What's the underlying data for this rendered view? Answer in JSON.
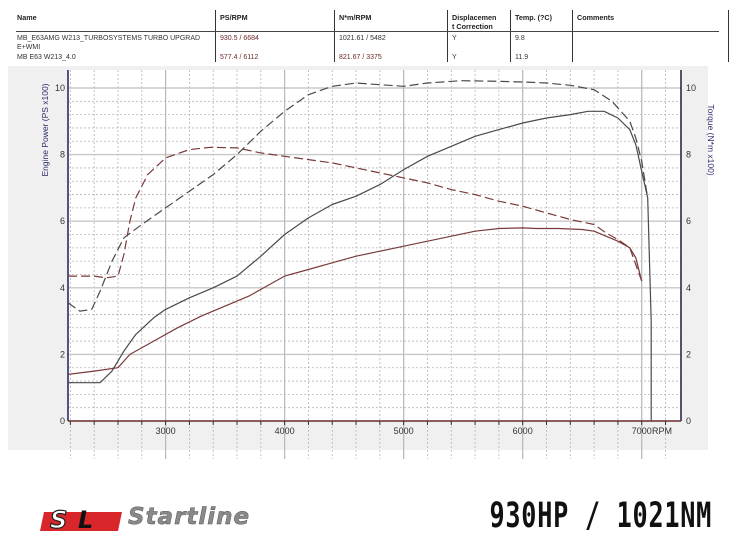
{
  "table": {
    "headers": {
      "name": "Name",
      "ps_rpm": "PS/RPM",
      "nm_rpm": "N*m/RPM",
      "displacement_line1": "Displacemen",
      "displacement_line2": "t Correction",
      "temp": "Temp. (?C)",
      "comments": "Comments"
    },
    "rows": [
      {
        "name_line1": "MB_E63AMG W213_TURBOSYSTEMS TURBO UPGRAD",
        "name_line2": "E+WMI",
        "ps_rpm": "930.5 / 6684",
        "nm_rpm": "1021.61 / 5482",
        "displacement": "Y",
        "temp": "9.8",
        "comments": ""
      },
      {
        "name_line1": "MB E63 W213_4.0",
        "name_line2": "",
        "ps_rpm": "577.4 / 6112",
        "nm_rpm": "821.67 / 3375",
        "displacement": "Y",
        "temp": "11.9",
        "comments": ""
      }
    ]
  },
  "footer": {
    "logo_mark": "SL",
    "logo_text": "Startline",
    "headline": "930HP / 1021NM"
  },
  "chart_data": {
    "type": "line",
    "title": "",
    "xlabel": "RPM",
    "ylabel": "Engine Power (PS x100)",
    "y2label": "Torque (N*m x100)",
    "xlim": [
      2180,
      7330
    ],
    "ylim": [
      0,
      10.5
    ],
    "y2lim": [
      0,
      10.5
    ],
    "x_ticks": [
      3000,
      4000,
      5000,
      6000,
      7000
    ],
    "y_ticks": [
      0,
      2,
      4,
      6,
      8,
      10
    ],
    "y2_ticks": [
      0,
      2,
      4,
      6,
      8,
      10
    ],
    "grid": true,
    "legend": "none (curves identified by header table)",
    "series": [
      {
        "name": "MB_E63AMG W213_TURBOSYSTEMS TURBO UPGRADE+WMI - Power (PS x100)",
        "color": "#4a4a4a",
        "style": "solid",
        "points": [
          [
            2180,
            1.15
          ],
          [
            2450,
            1.15
          ],
          [
            2550,
            1.5
          ],
          [
            2650,
            2.1
          ],
          [
            2750,
            2.6
          ],
          [
            2900,
            3.1
          ],
          [
            3000,
            3.35
          ],
          [
            3200,
            3.7
          ],
          [
            3400,
            4.0
          ],
          [
            3600,
            4.35
          ],
          [
            3800,
            4.95
          ],
          [
            4000,
            5.6
          ],
          [
            4200,
            6.1
          ],
          [
            4400,
            6.5
          ],
          [
            4600,
            6.75
          ],
          [
            4800,
            7.1
          ],
          [
            5000,
            7.55
          ],
          [
            5200,
            7.95
          ],
          [
            5400,
            8.25
          ],
          [
            5600,
            8.55
          ],
          [
            5800,
            8.75
          ],
          [
            6000,
            8.95
          ],
          [
            6200,
            9.1
          ],
          [
            6400,
            9.2
          ],
          [
            6550,
            9.3
          ],
          [
            6684,
            9.3
          ],
          [
            6800,
            9.1
          ],
          [
            6900,
            8.75
          ],
          [
            6950,
            8.3
          ],
          [
            7000,
            7.5
          ],
          [
            7050,
            6.7
          ],
          [
            7080,
            3.0
          ],
          [
            7080,
            0
          ]
        ]
      },
      {
        "name": "MB_E63AMG W213_TURBOSYSTEMS TURBO UPGRADE+WMI - Torque (N*m x100)",
        "color": "#4a4a4a",
        "style": "dashed",
        "points": [
          [
            2180,
            3.55
          ],
          [
            2280,
            3.3
          ],
          [
            2380,
            3.35
          ],
          [
            2450,
            3.9
          ],
          [
            2550,
            4.8
          ],
          [
            2650,
            5.5
          ],
          [
            2800,
            5.9
          ],
          [
            3000,
            6.4
          ],
          [
            3200,
            6.9
          ],
          [
            3400,
            7.4
          ],
          [
            3600,
            8.0
          ],
          [
            3800,
            8.7
          ],
          [
            4000,
            9.3
          ],
          [
            4200,
            9.8
          ],
          [
            4400,
            10.05
          ],
          [
            4600,
            10.15
          ],
          [
            4800,
            10.1
          ],
          [
            5000,
            10.05
          ],
          [
            5200,
            10.15
          ],
          [
            5482,
            10.22
          ],
          [
            5800,
            10.2
          ],
          [
            6000,
            10.18
          ],
          [
            6200,
            10.15
          ],
          [
            6400,
            10.08
          ],
          [
            6600,
            9.95
          ],
          [
            6750,
            9.6
          ],
          [
            6900,
            9.0
          ],
          [
            6950,
            8.5
          ],
          [
            7000,
            7.8
          ],
          [
            7050,
            6.7
          ]
        ]
      },
      {
        "name": "MB E63 W213_4.0 - Power (PS x100)",
        "color": "#7a3a3a",
        "style": "solid",
        "points": [
          [
            2180,
            1.4
          ],
          [
            2400,
            1.5
          ],
          [
            2600,
            1.6
          ],
          [
            2700,
            2.0
          ],
          [
            2900,
            2.4
          ],
          [
            3100,
            2.8
          ],
          [
            3300,
            3.15
          ],
          [
            3500,
            3.45
          ],
          [
            3700,
            3.75
          ],
          [
            4000,
            4.35
          ],
          [
            4200,
            4.55
          ],
          [
            4400,
            4.75
          ],
          [
            4600,
            4.95
          ],
          [
            4800,
            5.1
          ],
          [
            5000,
            5.25
          ],
          [
            5200,
            5.4
          ],
          [
            5400,
            5.55
          ],
          [
            5600,
            5.7
          ],
          [
            5800,
            5.78
          ],
          [
            6000,
            5.8
          ],
          [
            6112,
            5.78
          ],
          [
            6300,
            5.78
          ],
          [
            6500,
            5.75
          ],
          [
            6600,
            5.7
          ],
          [
            6700,
            5.55
          ],
          [
            6800,
            5.4
          ],
          [
            6900,
            5.2
          ],
          [
            6950,
            4.9
          ],
          [
            7000,
            4.2
          ]
        ]
      },
      {
        "name": "MB E63 W213_4.0 - Torque (N*m x100)",
        "color": "#7a3a3a",
        "style": "dashed",
        "points": [
          [
            2180,
            4.35
          ],
          [
            2400,
            4.35
          ],
          [
            2500,
            4.3
          ],
          [
            2600,
            4.35
          ],
          [
            2650,
            5.0
          ],
          [
            2700,
            6.0
          ],
          [
            2750,
            6.7
          ],
          [
            2850,
            7.4
          ],
          [
            3000,
            7.9
          ],
          [
            3200,
            8.15
          ],
          [
            3375,
            8.22
          ],
          [
            3600,
            8.2
          ],
          [
            3800,
            8.05
          ],
          [
            4000,
            7.95
          ],
          [
            4200,
            7.85
          ],
          [
            4400,
            7.75
          ],
          [
            4600,
            7.6
          ],
          [
            4800,
            7.45
          ],
          [
            5000,
            7.3
          ],
          [
            5200,
            7.15
          ],
          [
            5400,
            6.95
          ],
          [
            5600,
            6.8
          ],
          [
            5800,
            6.6
          ],
          [
            6000,
            6.45
          ],
          [
            6200,
            6.25
          ],
          [
            6400,
            6.05
          ],
          [
            6600,
            5.9
          ],
          [
            6700,
            5.65
          ],
          [
            6800,
            5.45
          ],
          [
            6900,
            5.2
          ],
          [
            7000,
            4.2
          ]
        ]
      }
    ]
  }
}
